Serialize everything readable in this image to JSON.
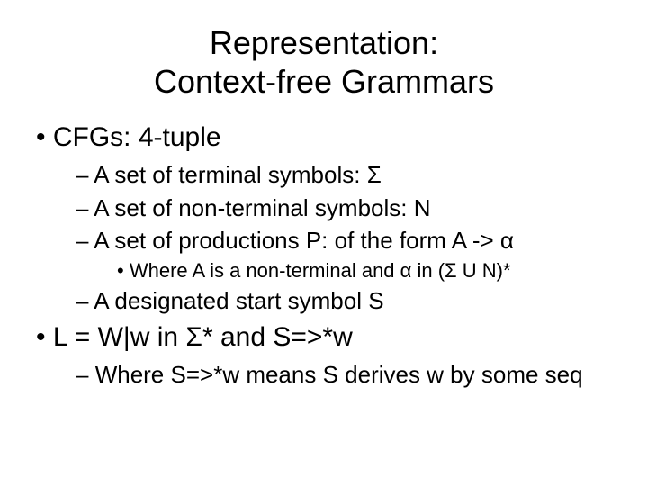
{
  "title_line1": "Representation:",
  "title_line2": "Context-free Grammars",
  "bullets": {
    "l1_a": "CFGs: 4-tuple",
    "l2_a": "A set of terminal symbols: Σ",
    "l2_b": "A set of non-terminal symbols: N",
    "l2_c": "A set of productions P: of the form A -> α",
    "l3_a": "Where A is a non-terminal and α in (Σ U N)*",
    "l2_d": "A designated start symbol S",
    "l1_b": "L = W|w in Σ* and S=>*w",
    "l2_e": "Where S=>*w means S derives w by some seq"
  },
  "colors": {
    "background": "#ffffff",
    "text": "#000000"
  },
  "typography": {
    "title_fontsize": 36,
    "level1_fontsize": 30,
    "level2_fontsize": 26,
    "level3_fontsize": 22,
    "font_family": "Arial"
  }
}
